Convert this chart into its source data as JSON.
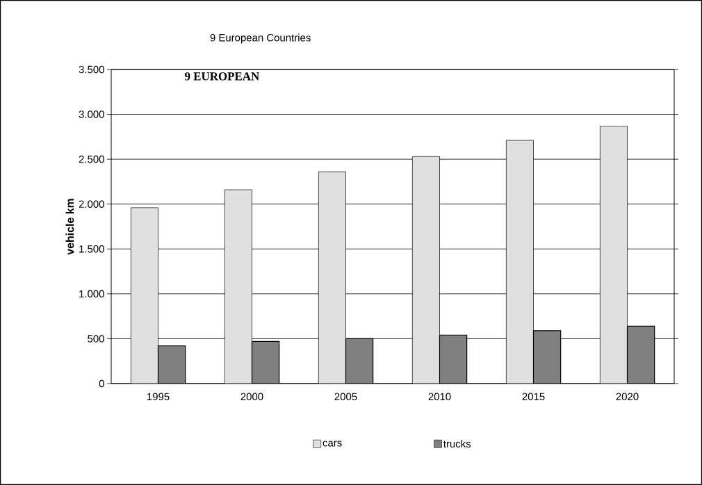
{
  "chart_data": {
    "type": "bar",
    "title": "9 European Countries",
    "ylabel": "vehicle km",
    "categories": [
      "1995",
      "2000",
      "2005",
      "2010",
      "2015",
      "2020"
    ],
    "series": [
      {
        "name": "cars",
        "color": "#e0e0e0",
        "values": [
          1960,
          2160,
          2360,
          2530,
          2710,
          2870
        ]
      },
      {
        "name": "trucks",
        "color": "#808080",
        "values": [
          420,
          470,
          500,
          540,
          590,
          640
        ]
      }
    ],
    "ylim": [
      0,
      3500
    ],
    "yticks": [
      0,
      500,
      {
        "value": 1000,
        "label": "1.000"
      },
      {
        "value": 1500,
        "label": "1.500"
      },
      {
        "value": 2000,
        "label": "2.000"
      },
      {
        "value": 2500,
        "label": "2.500"
      },
      {
        "value": 3000,
        "label": "3.000"
      },
      {
        "value": 3500,
        "label": "3.500"
      }
    ],
    "annotations": [
      "9 EUROPEAN"
    ],
    "grid": "y",
    "legend": "bottom"
  }
}
